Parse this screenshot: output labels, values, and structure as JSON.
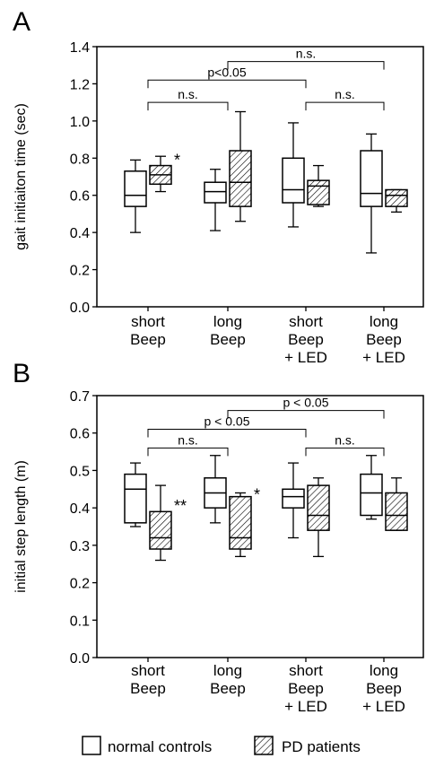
{
  "panels": {
    "A": {
      "letter": "A"
    },
    "B": {
      "letter": "B"
    }
  },
  "legend": {
    "normal": "normal controls",
    "pd": "PD patients"
  },
  "colors": {
    "ink": "#000000",
    "background": "#ffffff",
    "hatch": "#000000"
  },
  "chart_data": [
    {
      "type": "box",
      "panel": "A",
      "ylabel": "gait initiaiton time (sec)",
      "ylim": [
        0,
        1.4
      ],
      "yticks": [
        0.0,
        0.2,
        0.4,
        0.6,
        0.8,
        1.0,
        1.2,
        1.4
      ],
      "ytick_labels": [
        "0.0",
        "0.2",
        "0.4",
        "0.6",
        "0.8",
        "1.0",
        "1.2",
        "1.4"
      ],
      "grid": false,
      "categories": [
        [
          "short",
          "Beep"
        ],
        [
          "long",
          "Beep"
        ],
        [
          "short",
          "Beep",
          "+ LED"
        ],
        [
          "long",
          "Beep",
          "+ LED"
        ]
      ],
      "series": [
        {
          "name": "normal controls",
          "boxes": [
            {
              "min": 0.4,
              "q1": 0.54,
              "median": 0.6,
              "q3": 0.73,
              "max": 0.79
            },
            {
              "min": 0.41,
              "q1": 0.56,
              "median": 0.62,
              "q3": 0.67,
              "max": 0.74
            },
            {
              "min": 0.43,
              "q1": 0.56,
              "median": 0.63,
              "q3": 0.8,
              "max": 0.99
            },
            {
              "min": 0.29,
              "q1": 0.54,
              "median": 0.61,
              "q3": 0.84,
              "max": 0.93
            }
          ]
        },
        {
          "name": "PD patients",
          "boxes": [
            {
              "min": 0.62,
              "q1": 0.66,
              "median": 0.71,
              "q3": 0.76,
              "max": 0.81
            },
            {
              "min": 0.46,
              "q1": 0.54,
              "median": 0.67,
              "q3": 0.84,
              "max": 1.05
            },
            {
              "min": 0.54,
              "q1": 0.55,
              "median": 0.65,
              "q3": 0.68,
              "max": 0.76
            },
            {
              "min": 0.51,
              "q1": 0.54,
              "median": 0.6,
              "q3": 0.63,
              "max": 0.63
            }
          ]
        }
      ],
      "star_annotations": [
        {
          "group": 0,
          "label": "*",
          "y": 0.78
        }
      ],
      "brackets": [
        {
          "from_group": 0,
          "to_group": 1,
          "y": 1.1,
          "label": "n.s."
        },
        {
          "from_group": 2,
          "to_group": 3,
          "y": 1.1,
          "label": "n.s."
        },
        {
          "from_group": 0,
          "to_group": 2,
          "y": 1.22,
          "label": "p<0.05"
        },
        {
          "from_group": 1,
          "to_group": 3,
          "y": 1.32,
          "label": "n.s."
        }
      ]
    },
    {
      "type": "box",
      "panel": "B",
      "ylabel": "initial step length (m)",
      "ylim": [
        0,
        0.7
      ],
      "yticks": [
        0.0,
        0.1,
        0.2,
        0.3,
        0.4,
        0.5,
        0.6,
        0.7
      ],
      "ytick_labels": [
        "0.0",
        "0.1",
        "0.2",
        "0.3",
        "0.4",
        "0.5",
        "0.6",
        "0.7"
      ],
      "grid": false,
      "categories": [
        [
          "short",
          "Beep"
        ],
        [
          "long",
          "Beep"
        ],
        [
          "short",
          "Beep",
          "+ LED"
        ],
        [
          "long",
          "Beep",
          "+ LED"
        ]
      ],
      "series": [
        {
          "name": "normal controls",
          "boxes": [
            {
              "min": 0.35,
              "q1": 0.36,
              "median": 0.45,
              "q3": 0.49,
              "max": 0.52
            },
            {
              "min": 0.36,
              "q1": 0.4,
              "median": 0.44,
              "q3": 0.48,
              "max": 0.54
            },
            {
              "min": 0.32,
              "q1": 0.4,
              "median": 0.43,
              "q3": 0.45,
              "max": 0.52
            },
            {
              "min": 0.37,
              "q1": 0.38,
              "median": 0.44,
              "q3": 0.49,
              "max": 0.54
            }
          ]
        },
        {
          "name": "PD patients",
          "boxes": [
            {
              "min": 0.26,
              "q1": 0.29,
              "median": 0.32,
              "q3": 0.39,
              "max": 0.46
            },
            {
              "min": 0.27,
              "q1": 0.29,
              "median": 0.32,
              "q3": 0.43,
              "max": 0.44
            },
            {
              "min": 0.27,
              "q1": 0.34,
              "median": 0.38,
              "q3": 0.46,
              "max": 0.48
            },
            {
              "min": 0.34,
              "q1": 0.34,
              "median": 0.38,
              "q3": 0.44,
              "max": 0.48
            }
          ]
        }
      ],
      "star_annotations": [
        {
          "group": 0,
          "label": "**",
          "y": 0.4
        },
        {
          "group": 1,
          "label": "*",
          "y": 0.43
        }
      ],
      "brackets": [
        {
          "from_group": 0,
          "to_group": 1,
          "y": 0.56,
          "label": "n.s."
        },
        {
          "from_group": 2,
          "to_group": 3,
          "y": 0.56,
          "label": "n.s."
        },
        {
          "from_group": 0,
          "to_group": 2,
          "y": 0.61,
          "label": "p < 0.05"
        },
        {
          "from_group": 1,
          "to_group": 3,
          "y": 0.66,
          "label": "p < 0.05"
        }
      ]
    }
  ]
}
